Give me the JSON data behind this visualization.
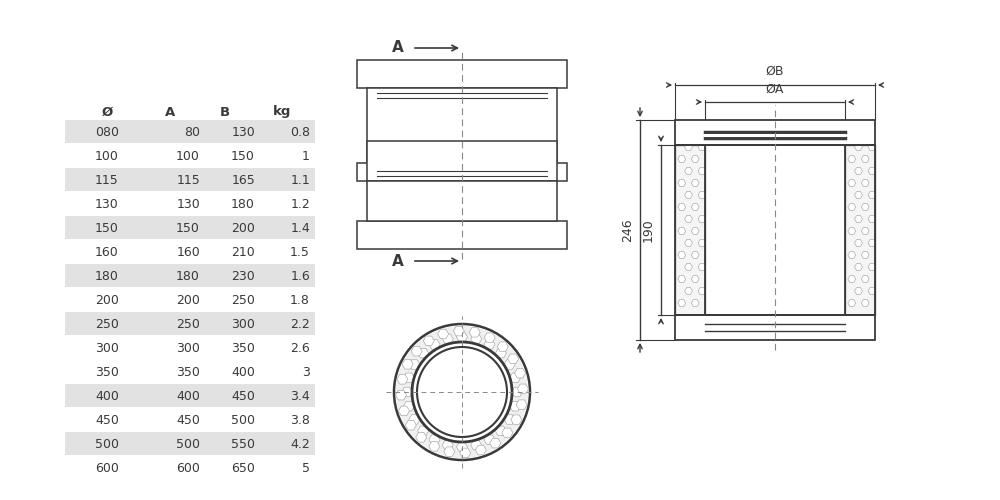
{
  "table_headers": [
    "Ø",
    "A",
    "B",
    "kg"
  ],
  "table_rows": [
    [
      "080",
      "80",
      "130",
      "0.8"
    ],
    [
      "100",
      "100",
      "150",
      "1"
    ],
    [
      "115",
      "115",
      "165",
      "1.1"
    ],
    [
      "130",
      "130",
      "180",
      "1.2"
    ],
    [
      "150",
      "150",
      "200",
      "1.4"
    ],
    [
      "160",
      "160",
      "210",
      "1.5"
    ],
    [
      "180",
      "180",
      "230",
      "1.6"
    ],
    [
      "200",
      "200",
      "250",
      "1.8"
    ],
    [
      "250",
      "250",
      "300",
      "2.2"
    ],
    [
      "300",
      "300",
      "350",
      "2.6"
    ],
    [
      "350",
      "350",
      "400",
      "3"
    ],
    [
      "400",
      "400",
      "450",
      "3.4"
    ],
    [
      "450",
      "450",
      "500",
      "3.8"
    ],
    [
      "500",
      "500",
      "550",
      "4.2"
    ],
    [
      "600",
      "600",
      "650",
      "5"
    ]
  ],
  "shaded_rows": [
    0,
    2,
    4,
    6,
    8,
    11,
    13
  ],
  "row_shade_color": "#e2e2e2",
  "bg_color": "#ffffff",
  "line_color": "#3a3a3a",
  "text_color": "#3a3a3a",
  "dim_246": "246",
  "dim_190": "190",
  "dim_phiA": "ØA",
  "dim_phiB": "ØB"
}
